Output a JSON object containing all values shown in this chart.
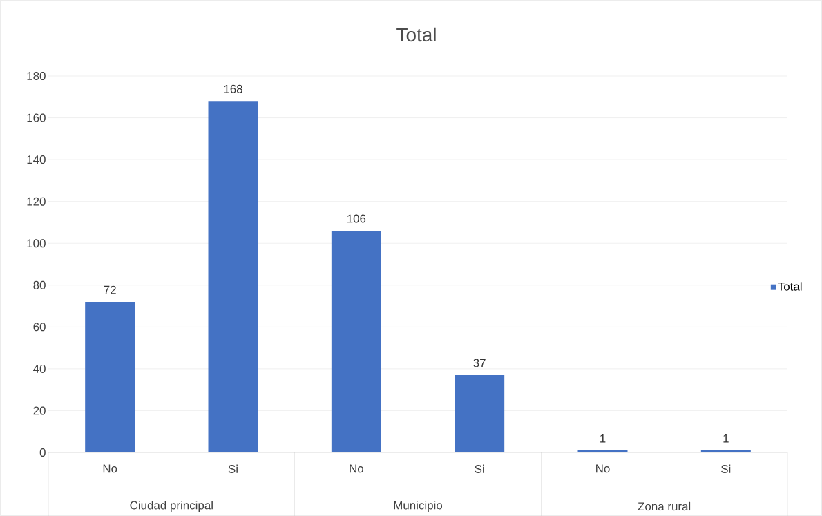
{
  "chart_data": {
    "type": "bar",
    "title": "Total",
    "categories": [
      "No",
      "Si",
      "No",
      "Si",
      "No",
      "Si"
    ],
    "series": [
      {
        "name": "Total",
        "color": "#4472c4",
        "values": [
          72,
          168,
          106,
          37,
          1,
          1
        ]
      }
    ],
    "annotations": [
      "Ciudad principal",
      "Municipio",
      "Zona rural"
    ],
    "ylim": [
      0,
      180
    ],
    "yticks": [
      0,
      20,
      40,
      60,
      80,
      100,
      120,
      140,
      160,
      180
    ],
    "grid": "y",
    "legend": "right",
    "data_labels": true
  }
}
